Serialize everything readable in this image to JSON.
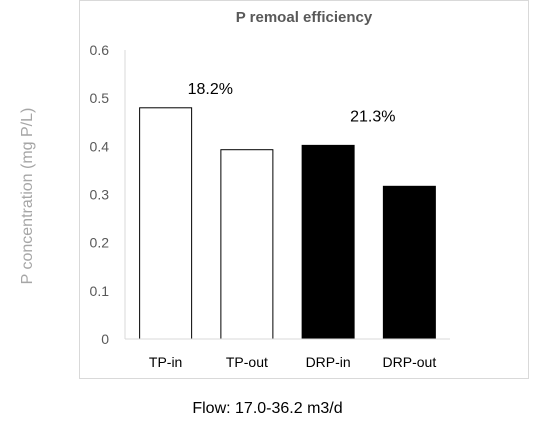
{
  "chart_data": {
    "type": "bar",
    "title": "P remoal efficiency",
    "ylabel": "P concentration (mg P/L)",
    "xlabel": "Flow: 17.0-36.2 m3/d",
    "categories": [
      "TP-in",
      "TP-out",
      "DRP-in",
      "DRP-out"
    ],
    "values": [
      0.48,
      0.393,
      0.402,
      0.317
    ],
    "bar_colors": [
      "#ffffff",
      "#ffffff",
      "#000000",
      "#000000"
    ],
    "ylim": [
      0,
      0.6
    ],
    "yticks": [
      "0",
      "0.1",
      "0.2",
      "0.3",
      "0.4",
      "0.5",
      "0.6"
    ],
    "grid": false,
    "annotations": [
      {
        "text": "18.2%",
        "category": "TP-in"
      },
      {
        "text": "21.3%",
        "category": "DRP-in"
      }
    ]
  }
}
